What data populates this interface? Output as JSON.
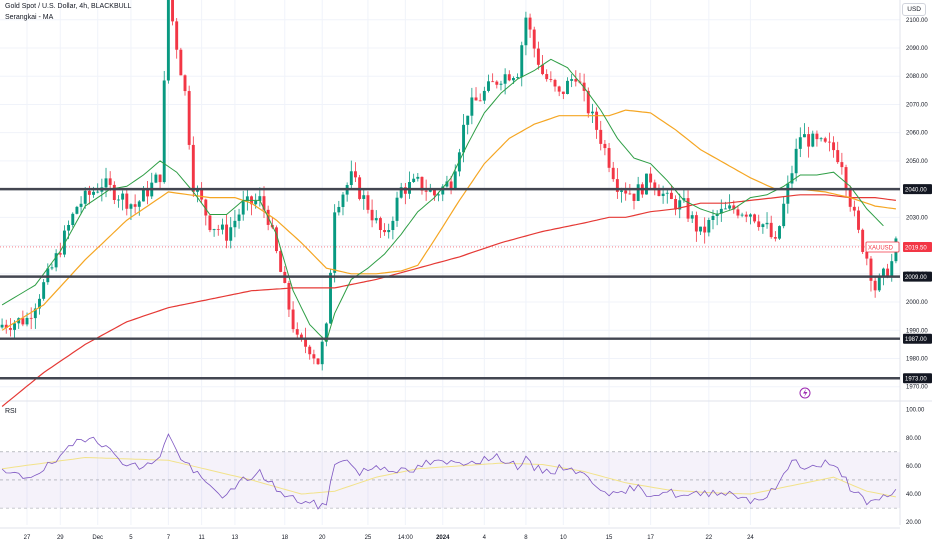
{
  "header": {
    "symbol": "Gold Spot / U.S. Dollar, 4h, BLACKBULL",
    "indicator": "Serangkai - MA",
    "currency": "USD"
  },
  "rsi_panel": {
    "label": "RSI"
  },
  "colors": {
    "up": "#089981",
    "down": "#f23645",
    "ma_fast": "#2e9e45",
    "ma_mid": "#f5a623",
    "ma_slow": "#e53935",
    "rsi_line": "#7e57c2",
    "rsi_ma": "#f2e28a",
    "hline": "#434651",
    "price_badge": "#f23645"
  },
  "chart_data": [
    {
      "type": "candlestick",
      "ylim": [
        1966,
        2107
      ],
      "y_ticks": [
        "1970.00",
        "1980.00",
        "1990.00",
        "2000.00",
        "2010.00",
        "2020.00",
        "2030.00",
        "2040.00",
        "2050.00",
        "2060.00",
        "2070.00",
        "2080.00",
        "2090.00",
        "2100.00"
      ],
      "x_ticks": [
        "27",
        "29",
        "Dec",
        "5",
        "7",
        "11",
        "13",
        "18",
        "20",
        "25",
        "14:00",
        "2024",
        "4",
        "8",
        "10",
        "15",
        "17",
        "22",
        "24"
      ],
      "horizontal_levels": [
        {
          "label": "2040.00",
          "value": 2040
        },
        {
          "label": "2009.00",
          "value": 2009
        },
        {
          "label": "1987.00",
          "value": 1987
        },
        {
          "label": "1973.00",
          "value": 1973
        }
      ],
      "last_price": {
        "label": "XAUUSD",
        "value_label": "2019.50",
        "value": 2019.5
      },
      "close_path": [
        [
          0,
          1992
        ],
        [
          6,
          1994
        ],
        [
          12,
          2012
        ],
        [
          18,
          2034
        ],
        [
          24,
          2042
        ],
        [
          28,
          2038
        ],
        [
          32,
          2034
        ],
        [
          38,
          2045
        ],
        [
          40,
          2108
        ],
        [
          44,
          2074
        ],
        [
          46,
          2042
        ],
        [
          50,
          2028
        ],
        [
          54,
          2024
        ],
        [
          58,
          2034
        ],
        [
          62,
          2036
        ],
        [
          64,
          2030
        ],
        [
          68,
          2004
        ],
        [
          71,
          1986
        ],
        [
          74,
          1984
        ],
        [
          76,
          1979
        ],
        [
          78,
          1990
        ],
        [
          80,
          2034
        ],
        [
          84,
          2044
        ],
        [
          88,
          2034
        ],
        [
          92,
          2022
        ],
        [
          96,
          2040
        ],
        [
          100,
          2042
        ],
        [
          104,
          2038
        ],
        [
          108,
          2043
        ],
        [
          112,
          2068
        ],
        [
          116,
          2074
        ],
        [
          120,
          2080
        ],
        [
          124,
          2082
        ],
        [
          126,
          2101
        ],
        [
          128,
          2090
        ],
        [
          130,
          2081
        ],
        [
          134,
          2073
        ],
        [
          138,
          2081
        ],
        [
          140,
          2072
        ],
        [
          142,
          2065
        ],
        [
          144,
          2058
        ],
        [
          148,
          2042
        ],
        [
          152,
          2038
        ],
        [
          156,
          2044
        ],
        [
          160,
          2036
        ],
        [
          164,
          2034
        ],
        [
          168,
          2024
        ],
        [
          172,
          2031
        ],
        [
          176,
          2033
        ],
        [
          180,
          2032
        ],
        [
          184,
          2026
        ],
        [
          186,
          2020
        ],
        [
          188,
          2034
        ],
        [
          192,
          2059
        ],
        [
          196,
          2056
        ],
        [
          200,
          2054
        ],
        [
          202,
          2050
        ],
        [
          204,
          2036
        ],
        [
          206,
          2024
        ],
        [
          208,
          2016
        ],
        [
          210,
          2005
        ],
        [
          212,
          2009
        ],
        [
          214,
          2014
        ],
        [
          215,
          2020
        ]
      ],
      "ma_fast_path": [
        [
          0,
          1999
        ],
        [
          8,
          2006
        ],
        [
          14,
          2018
        ],
        [
          20,
          2034
        ],
        [
          26,
          2040
        ],
        [
          30,
          2041
        ],
        [
          34,
          2045
        ],
        [
          38,
          2050
        ],
        [
          42,
          2046
        ],
        [
          46,
          2039
        ],
        [
          50,
          2031
        ],
        [
          54,
          2031
        ],
        [
          58,
          2036
        ],
        [
          62,
          2036
        ],
        [
          66,
          2024
        ],
        [
          70,
          2004
        ],
        [
          74,
          1992
        ],
        [
          78,
          1986
        ],
        [
          80,
          1996
        ],
        [
          84,
          2008
        ],
        [
          88,
          2012
        ],
        [
          92,
          2017
        ],
        [
          96,
          2024
        ],
        [
          100,
          2032
        ],
        [
          104,
          2037
        ],
        [
          108,
          2044
        ],
        [
          112,
          2056
        ],
        [
          116,
          2067
        ],
        [
          120,
          2074
        ],
        [
          124,
          2079
        ],
        [
          128,
          2082
        ],
        [
          132,
          2086
        ],
        [
          136,
          2083
        ],
        [
          140,
          2076
        ],
        [
          144,
          2068
        ],
        [
          148,
          2058
        ],
        [
          152,
          2051
        ],
        [
          156,
          2049
        ],
        [
          160,
          2043
        ],
        [
          164,
          2036
        ],
        [
          168,
          2033
        ],
        [
          172,
          2031
        ],
        [
          176,
          2033
        ],
        [
          180,
          2037
        ],
        [
          184,
          2038
        ],
        [
          188,
          2041
        ],
        [
          192,
          2045
        ],
        [
          196,
          2045
        ],
        [
          200,
          2046
        ],
        [
          204,
          2041
        ],
        [
          208,
          2033
        ],
        [
          212,
          2027
        ]
      ],
      "ma_mid_path": [
        [
          0,
          1990
        ],
        [
          10,
          1999
        ],
        [
          20,
          2015
        ],
        [
          30,
          2029
        ],
        [
          40,
          2039
        ],
        [
          50,
          2037
        ],
        [
          56,
          2037
        ],
        [
          60,
          2035
        ],
        [
          66,
          2029
        ],
        [
          72,
          2021
        ],
        [
          78,
          2012
        ],
        [
          84,
          2010
        ],
        [
          90,
          2010
        ],
        [
          96,
          2011
        ],
        [
          100,
          2013
        ],
        [
          104,
          2022
        ],
        [
          110,
          2036
        ],
        [
          116,
          2049
        ],
        [
          122,
          2058
        ],
        [
          128,
          2063
        ],
        [
          134,
          2066
        ],
        [
          140,
          2066
        ],
        [
          146,
          2066
        ],
        [
          150,
          2068
        ],
        [
          156,
          2067
        ],
        [
          162,
          2061
        ],
        [
          168,
          2054
        ],
        [
          174,
          2049
        ],
        [
          180,
          2044
        ],
        [
          186,
          2040
        ],
        [
          192,
          2040
        ],
        [
          198,
          2039
        ],
        [
          204,
          2037
        ],
        [
          210,
          2034
        ],
        [
          215,
          2033
        ]
      ],
      "ma_slow_path": [
        [
          0,
          1963
        ],
        [
          10,
          1975
        ],
        [
          20,
          1985
        ],
        [
          30,
          1993
        ],
        [
          40,
          1998
        ],
        [
          50,
          2001
        ],
        [
          60,
          2004
        ],
        [
          70,
          2005
        ],
        [
          80,
          2005
        ],
        [
          90,
          2008
        ],
        [
          100,
          2012
        ],
        [
          110,
          2016
        ],
        [
          120,
          2021
        ],
        [
          130,
          2025
        ],
        [
          140,
          2028
        ],
        [
          146,
          2030
        ],
        [
          150,
          2030
        ],
        [
          156,
          2032
        ],
        [
          162,
          2033
        ],
        [
          168,
          2035
        ],
        [
          174,
          2035
        ],
        [
          180,
          2036
        ],
        [
          186,
          2037
        ],
        [
          192,
          2038
        ],
        [
          198,
          2038
        ],
        [
          204,
          2037
        ],
        [
          210,
          2037
        ],
        [
          215,
          2036
        ]
      ]
    },
    {
      "type": "line",
      "title": "RSI",
      "ylim": [
        18,
        104
      ],
      "y_ticks": [
        "20.00",
        "40.00",
        "60.00",
        "80.00",
        "100.00"
      ],
      "bands": [
        30,
        50,
        70
      ],
      "rsi_path": [
        [
          0,
          55
        ],
        [
          6,
          52
        ],
        [
          10,
          58
        ],
        [
          14,
          65
        ],
        [
          18,
          78
        ],
        [
          22,
          82
        ],
        [
          26,
          70
        ],
        [
          30,
          62
        ],
        [
          34,
          58
        ],
        [
          38,
          68
        ],
        [
          40,
          82
        ],
        [
          42,
          70
        ],
        [
          46,
          56
        ],
        [
          50,
          45
        ],
        [
          54,
          38
        ],
        [
          58,
          50
        ],
        [
          62,
          55
        ],
        [
          64,
          50
        ],
        [
          68,
          38
        ],
        [
          72,
          35
        ],
        [
          76,
          32
        ],
        [
          78,
          32
        ],
        [
          80,
          62
        ],
        [
          82,
          66
        ],
        [
          86,
          55
        ],
        [
          90,
          60
        ],
        [
          94,
          58
        ],
        [
          98,
          55
        ],
        [
          102,
          62
        ],
        [
          108,
          62
        ],
        [
          114,
          64
        ],
        [
          120,
          66
        ],
        [
          124,
          60
        ],
        [
          126,
          64
        ],
        [
          128,
          58
        ],
        [
          132,
          56
        ],
        [
          136,
          60
        ],
        [
          140,
          53
        ],
        [
          144,
          45
        ],
        [
          148,
          38
        ],
        [
          152,
          45
        ],
        [
          156,
          40
        ],
        [
          160,
          42
        ],
        [
          164,
          38
        ],
        [
          168,
          40
        ],
        [
          172,
          42
        ],
        [
          176,
          40
        ],
        [
          180,
          36
        ],
        [
          184,
          38
        ],
        [
          188,
          52
        ],
        [
          190,
          65
        ],
        [
          194,
          58
        ],
        [
          198,
          62
        ],
        [
          202,
          55
        ],
        [
          204,
          45
        ],
        [
          206,
          40
        ],
        [
          208,
          32
        ],
        [
          210,
          34
        ],
        [
          212,
          38
        ],
        [
          215,
          42
        ]
      ],
      "rsi_ma_path": [
        [
          0,
          58
        ],
        [
          20,
          66
        ],
        [
          40,
          64
        ],
        [
          60,
          50
        ],
        [
          72,
          40
        ],
        [
          80,
          42
        ],
        [
          90,
          52
        ],
        [
          100,
          58
        ],
        [
          110,
          60
        ],
        [
          120,
          62
        ],
        [
          130,
          61
        ],
        [
          140,
          56
        ],
        [
          150,
          48
        ],
        [
          160,
          43
        ],
        [
          170,
          41
        ],
        [
          180,
          40
        ],
        [
          190,
          46
        ],
        [
          200,
          52
        ],
        [
          208,
          42
        ],
        [
          215,
          38
        ]
      ]
    }
  ]
}
